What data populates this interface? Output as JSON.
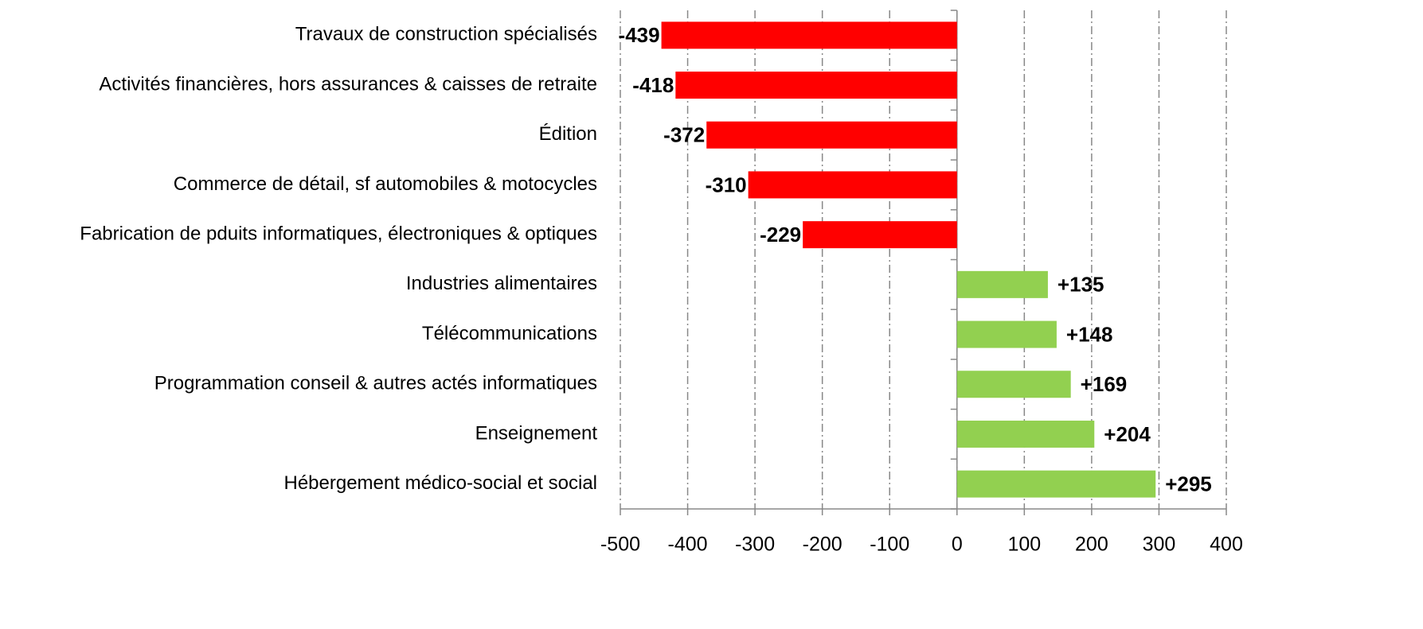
{
  "chart_data": {
    "type": "barh",
    "categories": [
      "Travaux de construction spécialisés",
      "Activités financières, hors assurances & caisses de retraite",
      "Édition",
      "Commerce de détail, sf automobiles & motocycles",
      "Fabrication de pduits informatiques, électroniques & optiques",
      "Industries alimentaires",
      "Télécommunications",
      "Programmation conseil & autres actés informatiques",
      "Enseignement",
      "Hébergement médico-social et social"
    ],
    "values": [
      -439,
      -418,
      -372,
      -310,
      -229,
      135,
      148,
      169,
      204,
      295
    ],
    "value_labels": [
      "-439",
      "-418",
      "-372",
      "-310",
      "-229",
      "+135",
      "+148",
      "+169",
      "+204",
      "+295"
    ],
    "color_negative": "#ff0000",
    "color_positive": "#92d050",
    "xlim": [
      -500,
      400
    ],
    "xticks": [
      -500,
      -400,
      -300,
      -200,
      -100,
      0,
      100,
      200,
      300,
      400
    ],
    "grid": true
  }
}
